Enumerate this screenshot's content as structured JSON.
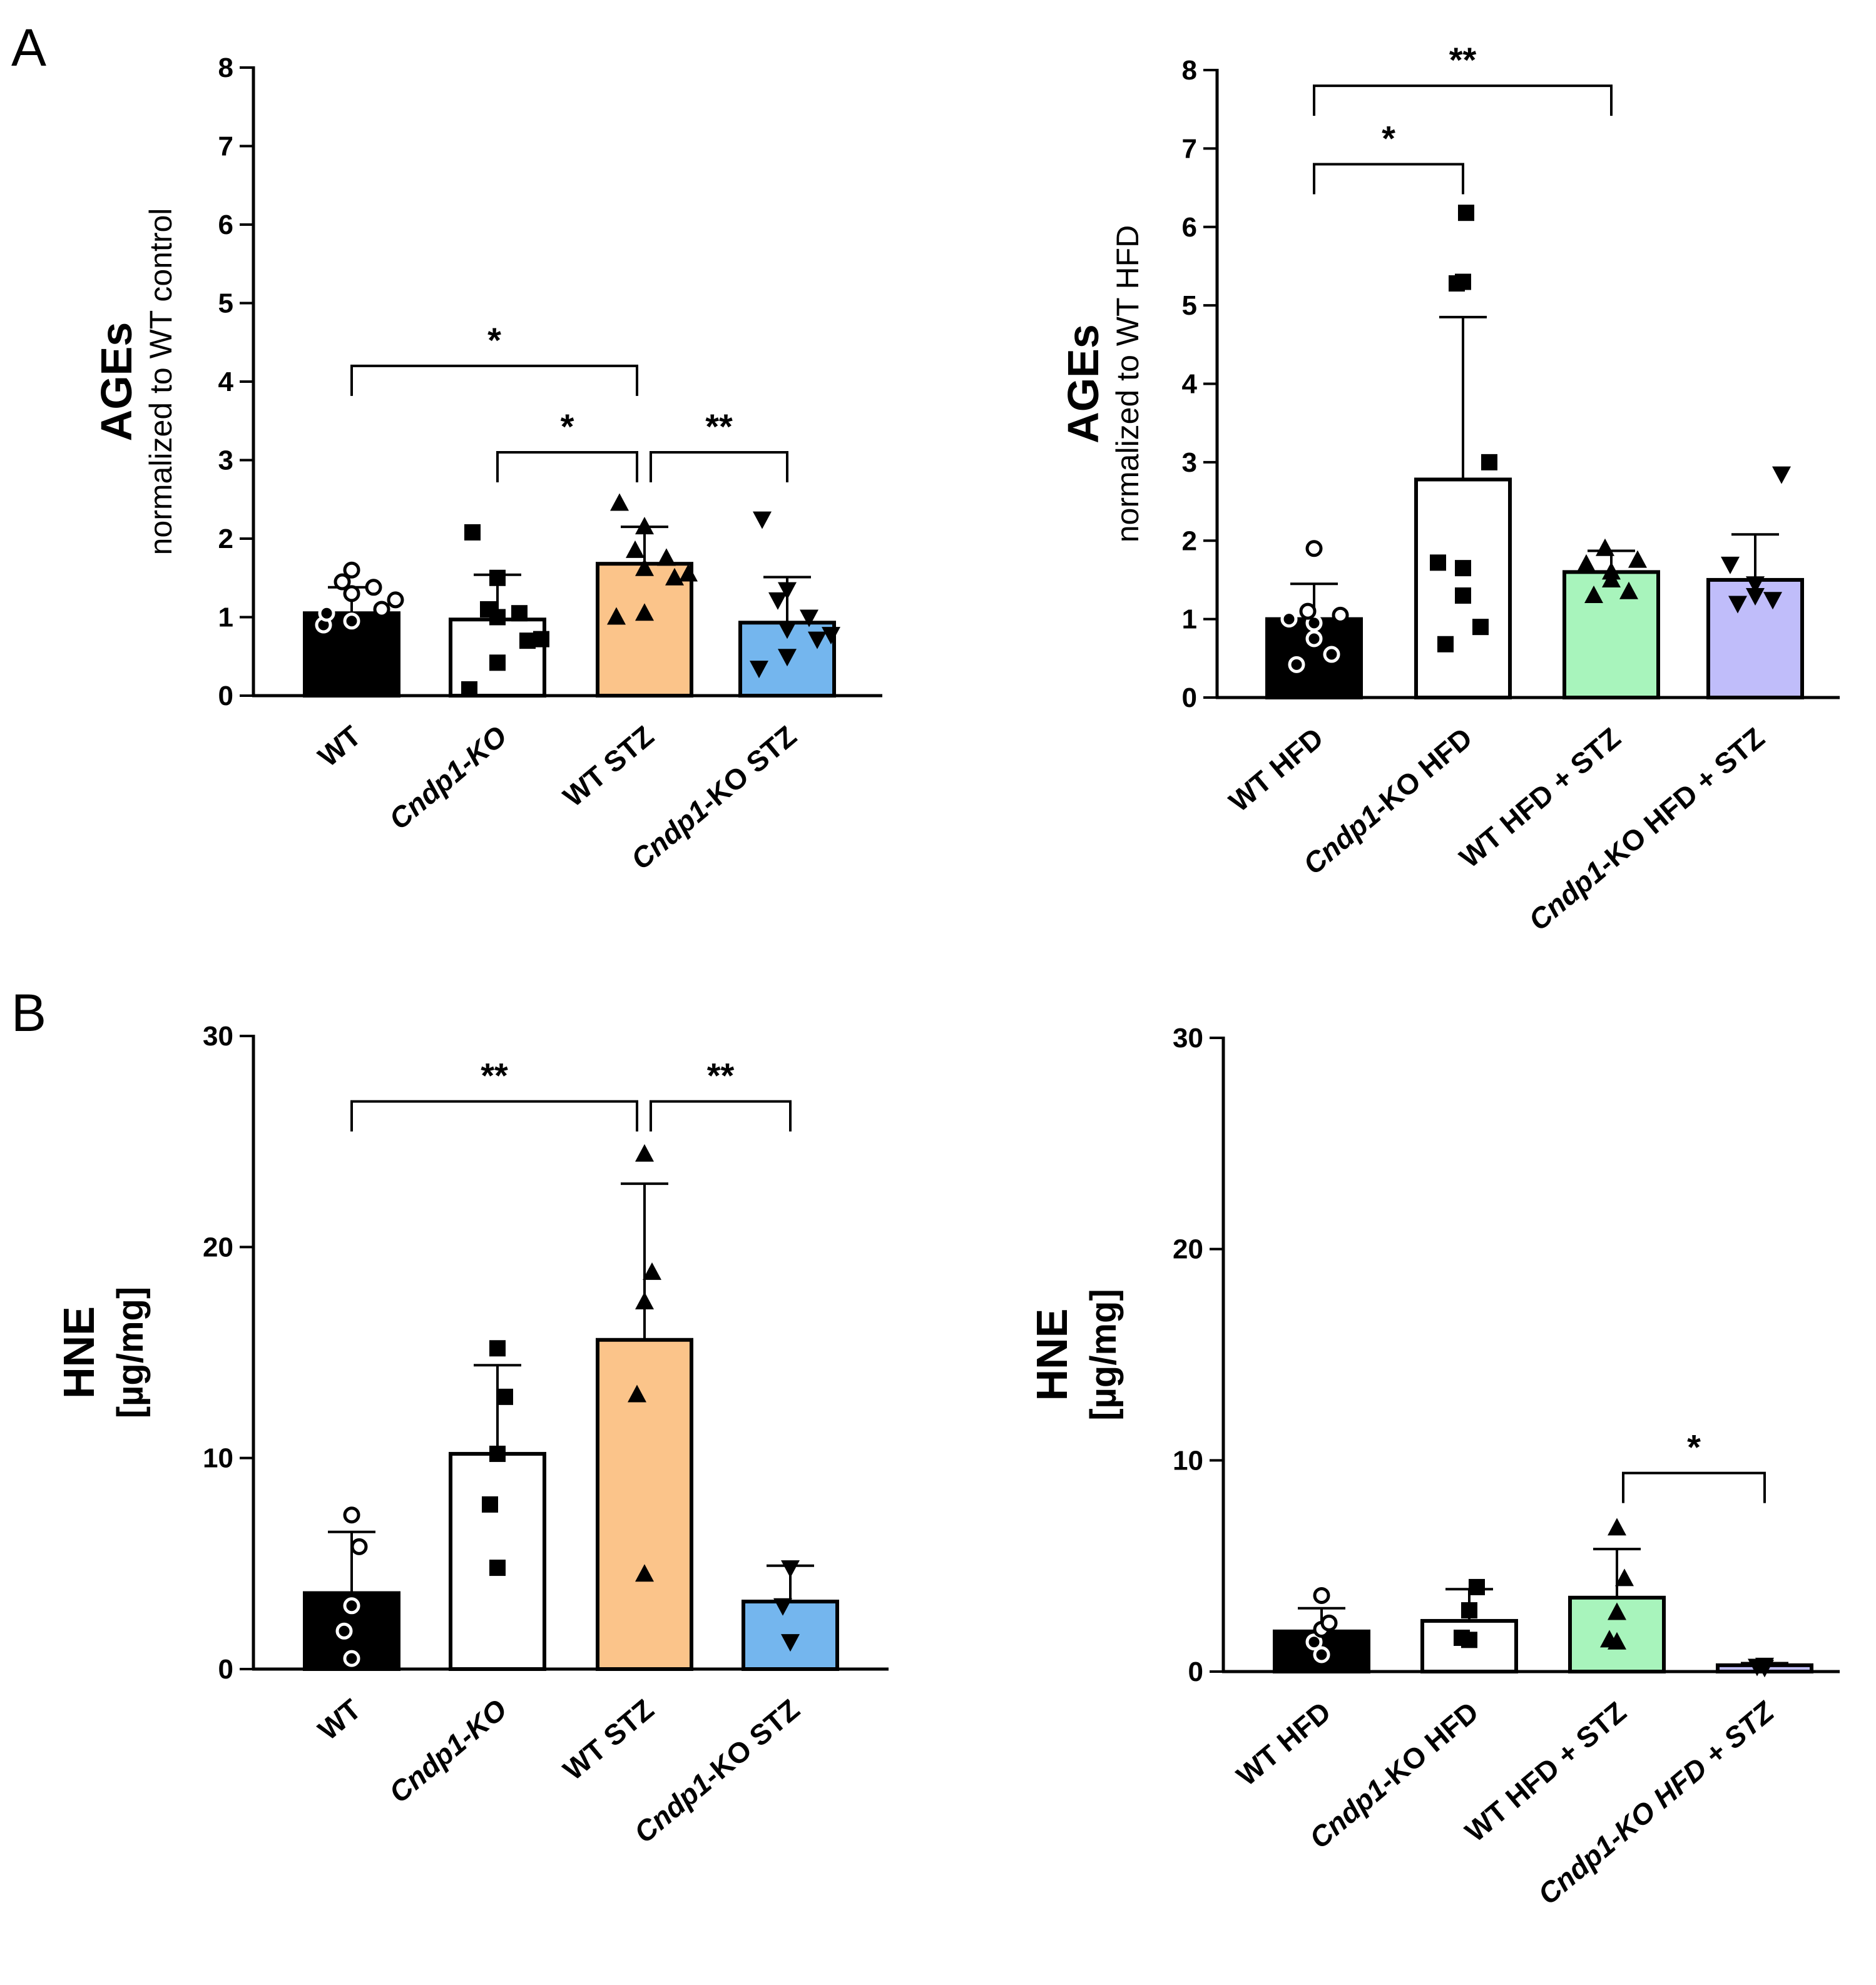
{
  "panel_labels": [
    "A",
    "B"
  ],
  "chart_data": [
    {
      "id": "A_left",
      "panel": "A",
      "type": "bar",
      "title": "",
      "ylabel": "AGEs",
      "ylabel_sub": "normalized to WT control",
      "ylim": [
        0,
        8
      ],
      "yticks": [
        0,
        1,
        2,
        3,
        4,
        5,
        6,
        7,
        8
      ],
      "categories": [
        "WT",
        "Cndp1-KO",
        "WT STZ",
        "Cndp1-KO STZ"
      ],
      "category_parts": [
        [
          {
            "t": "WT",
            "i": false
          }
        ],
        [
          {
            "t": "Cndp1",
            "i": true
          },
          {
            "t": "-KO",
            "i": true
          }
        ],
        [
          {
            "t": "WT STZ",
            "i": false
          }
        ],
        [
          {
            "t": "Cndp1",
            "i": true
          },
          {
            "t": "-KO STZ",
            "i": false
          }
        ]
      ],
      "values": [
        1.05,
        0.97,
        1.68,
        0.93
      ],
      "errors": [
        0.33,
        0.57,
        0.47,
        0.58
      ],
      "colors": [
        "#000000",
        "#ffffff",
        "#fbc48a",
        "#74b6ee"
      ],
      "markers": [
        "circle",
        "square",
        "triangle",
        "triangle-down"
      ],
      "points": [
        [
          0.9,
          0.95,
          1.1,
          1.22,
          1.3,
          1.38,
          1.45,
          1.6,
          1.05
        ],
        [
          0.08,
          0.42,
          0.7,
          0.72,
          1.0,
          1.05,
          1.1,
          1.5,
          2.08
        ],
        [
          1.0,
          1.05,
          1.5,
          1.55,
          1.62,
          1.75,
          1.85,
          2.15,
          2.45
        ],
        [
          0.35,
          0.5,
          0.72,
          0.78,
          0.85,
          1.0,
          1.22,
          1.35,
          2.25
        ]
      ],
      "significance": [
        {
          "from": 0,
          "to": 2,
          "label": "*",
          "y": 4.2
        },
        {
          "from": 1,
          "to": 2,
          "label": "*",
          "y": 3.1
        },
        {
          "from": 2,
          "to": 3,
          "label": "**",
          "y": 3.1
        }
      ]
    },
    {
      "id": "A_right",
      "panel": "A",
      "type": "bar",
      "title": "",
      "ylabel": "AGEs",
      "ylabel_sub": "normalized to WT HFD",
      "ylim": [
        0,
        8
      ],
      "yticks": [
        0,
        1,
        2,
        3,
        4,
        5,
        6,
        7,
        8
      ],
      "categories": [
        "WT HFD",
        "Cndp1-KO HFD",
        "WT HFD + STZ",
        "Cndp1-KO HFD + STZ"
      ],
      "category_parts": [
        [
          {
            "t": "WT HFD",
            "i": false
          }
        ],
        [
          {
            "t": "Cndp1",
            "i": true
          },
          {
            "t": "-KO HFD",
            "i": false
          }
        ],
        [
          {
            "t": "WT HFD + STZ",
            "i": false
          }
        ],
        [
          {
            "t": "Cndp1",
            "i": true
          },
          {
            "t": "-KO HFD + STZ",
            "i": false
          }
        ]
      ],
      "values": [
        1.0,
        2.78,
        1.6,
        1.5
      ],
      "errors": [
        0.45,
        2.07,
        0.27,
        0.58
      ],
      "colors": [
        "#000000",
        "#ffffff",
        "#a8f4bc",
        "#c0bdfa"
      ],
      "markers": [
        "circle",
        "square",
        "triangle",
        "triangle-down"
      ],
      "points": [
        [
          0.42,
          0.55,
          0.75,
          0.95,
          1.0,
          1.05,
          1.1,
          1.9
        ],
        [
          0.68,
          0.9,
          1.3,
          1.65,
          1.72,
          3.0,
          5.28,
          5.3,
          6.18
        ],
        [
          1.3,
          1.35,
          1.5,
          1.6,
          1.7,
          1.75,
          1.9
        ],
        [
          1.2,
          1.25,
          1.3,
          1.45,
          1.7,
          2.85
        ]
      ],
      "significance": [
        {
          "from": 0,
          "to": 1,
          "label": "*",
          "y": 6.8
        },
        {
          "from": 0,
          "to": 2,
          "label": "**",
          "y": 7.8
        }
      ]
    },
    {
      "id": "B_left",
      "panel": "B",
      "type": "bar",
      "title": "",
      "ylabel": "HNE",
      "ylabel_sub": "[µg/mg]",
      "ylim": [
        0,
        30
      ],
      "yticks": [
        0,
        10,
        20,
        30
      ],
      "categories": [
        "WT",
        "Cndp1-KO",
        "WT STZ",
        "Cndp1-KO STZ"
      ],
      "category_parts": [
        [
          {
            "t": "WT",
            "i": false
          }
        ],
        [
          {
            "t": "Cndp1-KO",
            "i": true
          }
        ],
        [
          {
            "t": "WT STZ",
            "i": false
          }
        ],
        [
          {
            "t": "Cndp1",
            "i": true
          },
          {
            "t": "-KO STZ",
            "i": false
          }
        ]
      ],
      "values": [
        3.6,
        10.2,
        15.6,
        3.2
      ],
      "errors": [
        2.9,
        4.2,
        7.4,
        1.7
      ],
      "colors": [
        "#000000",
        "#ffffff",
        "#fbc48a",
        "#74b6ee"
      ],
      "markers": [
        "circle",
        "square",
        "triangle",
        "triangle-down"
      ],
      "points": [
        [
          0.5,
          1.8,
          3.0,
          5.8,
          7.3
        ],
        [
          4.8,
          7.8,
          10.2,
          12.9,
          15.2
        ],
        [
          4.5,
          13.0,
          17.4,
          18.8,
          24.4
        ],
        [
          1.3,
          3.0,
          4.8
        ]
      ],
      "significance": [
        {
          "from": 0,
          "to": 2,
          "label": "**",
          "y": 26.9
        },
        {
          "from": 2,
          "to": 3,
          "label": "**",
          "y": 26.9
        }
      ]
    },
    {
      "id": "B_right",
      "panel": "B",
      "type": "bar",
      "title": "",
      "ylabel": "HNE",
      "ylabel_sub": "[µg/mg]",
      "ylim": [
        0,
        30
      ],
      "yticks": [
        0,
        10,
        20,
        30
      ],
      "categories": [
        "WT HFD",
        "Cndp1-KO HFD",
        "WT HFD + STZ",
        "Cndp1-KO HFD + STZ"
      ],
      "category_parts": [
        [
          {
            "t": "WT HFD",
            "i": false
          }
        ],
        [
          {
            "t": "Cndp1",
            "i": true
          },
          {
            "t": "-KO HFD",
            "i": false
          }
        ],
        [
          {
            "t": "WT HFD + STZ",
            "i": false
          }
        ],
        [
          {
            "t": "Cndp1-KO HFD + STZ",
            "i": true
          }
        ]
      ],
      "values": [
        1.9,
        2.4,
        3.5,
        0.3
      ],
      "errors": [
        1.1,
        1.5,
        2.3,
        0.1
      ],
      "colors": [
        "#000000",
        "#ffffff",
        "#a8f4bc",
        "#c0bdfa"
      ],
      "markers": [
        "circle",
        "square",
        "triangle",
        "triangle-down"
      ],
      "points": [
        [
          0.8,
          1.4,
          2.0,
          2.3,
          3.6
        ],
        [
          1.5,
          1.6,
          2.9,
          4.0
        ],
        [
          1.4,
          1.5,
          2.8,
          4.4,
          6.8
        ],
        [
          0.2,
          0.25,
          0.3
        ]
      ],
      "significance": [
        {
          "from": 2,
          "to": 3,
          "label": "*",
          "y": 9.4
        }
      ]
    }
  ]
}
